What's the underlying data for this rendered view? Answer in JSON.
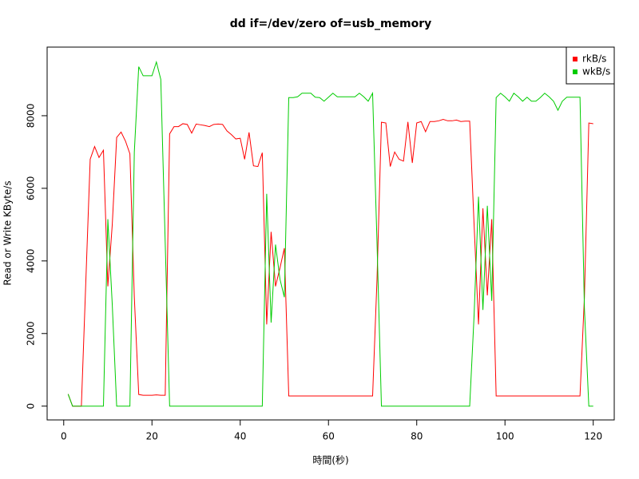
{
  "chart_data": {
    "type": "line",
    "title": "dd if=/dev/zero of=usb_memory",
    "x_label": "時間(秒)",
    "y_label": "Read or Write KByte/s",
    "x": [
      1,
      2,
      3,
      4,
      5,
      6,
      7,
      8,
      9,
      10,
      11,
      12,
      13,
      14,
      15,
      16,
      17,
      18,
      19,
      20,
      21,
      22,
      23,
      24,
      25,
      26,
      27,
      28,
      29,
      30,
      31,
      32,
      33,
      34,
      35,
      36,
      37,
      38,
      39,
      40,
      41,
      42,
      43,
      44,
      45,
      46,
      47,
      48,
      49,
      50,
      51,
      52,
      53,
      54,
      55,
      56,
      57,
      58,
      59,
      60,
      61,
      62,
      63,
      64,
      65,
      66,
      67,
      68,
      69,
      70,
      71,
      72,
      73,
      74,
      75,
      76,
      77,
      78,
      79,
      80,
      81,
      82,
      83,
      84,
      85,
      86,
      87,
      88,
      89,
      90,
      91,
      92,
      93,
      94,
      95,
      96,
      97,
      98,
      99,
      100,
      101,
      102,
      103,
      104,
      105,
      106,
      107,
      108,
      109,
      110,
      111,
      112,
      113,
      114,
      115,
      116,
      117,
      118,
      119,
      120
    ],
    "series": [
      {
        "name": "rkB/s",
        "color": "#ff0000",
        "values": [
          330,
          0,
          0,
          0,
          3400,
          6800,
          7150,
          6850,
          7050,
          3300,
          5000,
          7400,
          7550,
          7300,
          6950,
          3000,
          320,
          300,
          300,
          300,
          310,
          300,
          300,
          7500,
          7700,
          7700,
          7780,
          7760,
          7520,
          7770,
          7750,
          7730,
          7700,
          7760,
          7770,
          7760,
          7580,
          7480,
          7360,
          7380,
          6800,
          7540,
          6620,
          6600,
          6980,
          2250,
          4800,
          3300,
          3800,
          4350,
          280,
          280,
          280,
          280,
          280,
          280,
          280,
          280,
          280,
          280,
          280,
          280,
          280,
          280,
          280,
          280,
          280,
          280,
          280,
          280,
          3500,
          7820,
          7800,
          6600,
          7000,
          6800,
          6750,
          7830,
          6700,
          7800,
          7840,
          7560,
          7840,
          7840,
          7860,
          7900,
          7860,
          7860,
          7880,
          7840,
          7850,
          7850,
          5000,
          2250,
          5450,
          3050,
          5150,
          280,
          280,
          280,
          280,
          280,
          280,
          280,
          280,
          280,
          280,
          280,
          280,
          280,
          280,
          280,
          280,
          280,
          280,
          280,
          280,
          3000,
          7800,
          7780
        ]
      },
      {
        "name": "wkB/s",
        "color": "#00cc00",
        "values": [
          330,
          0,
          0,
          0,
          0,
          0,
          0,
          0,
          0,
          5150,
          2800,
          0,
          0,
          0,
          0,
          7000,
          9350,
          9100,
          9100,
          9100,
          9480,
          9000,
          4500,
          0,
          0,
          0,
          0,
          0,
          0,
          0,
          0,
          0,
          0,
          0,
          0,
          0,
          0,
          0,
          0,
          0,
          0,
          0,
          0,
          0,
          0,
          5850,
          2300,
          4450,
          3500,
          3000,
          8500,
          8500,
          8520,
          8620,
          8620,
          8620,
          8510,
          8500,
          8400,
          8510,
          8620,
          8520,
          8520,
          8520,
          8520,
          8520,
          8620,
          8520,
          8400,
          8620,
          4500,
          0,
          0,
          0,
          0,
          0,
          0,
          0,
          0,
          0,
          0,
          0,
          0,
          0,
          0,
          0,
          0,
          0,
          0,
          0,
          0,
          0,
          2500,
          5770,
          2650,
          5520,
          2900,
          8500,
          8620,
          8520,
          8400,
          8620,
          8520,
          8400,
          8510,
          8400,
          8400,
          8500,
          8620,
          8520,
          8400,
          8150,
          8400,
          8510,
          8510,
          8510,
          8510,
          2700,
          0,
          0
        ]
      }
    ],
    "xlim": [
      -3.76,
      124.76
    ],
    "xticks": [
      0,
      20,
      40,
      60,
      80,
      100,
      120
    ],
    "ylim": [
      -380,
      9890
    ],
    "yticks": [
      0,
      2000,
      4000,
      6000,
      8000
    ],
    "legend": "top-right"
  }
}
